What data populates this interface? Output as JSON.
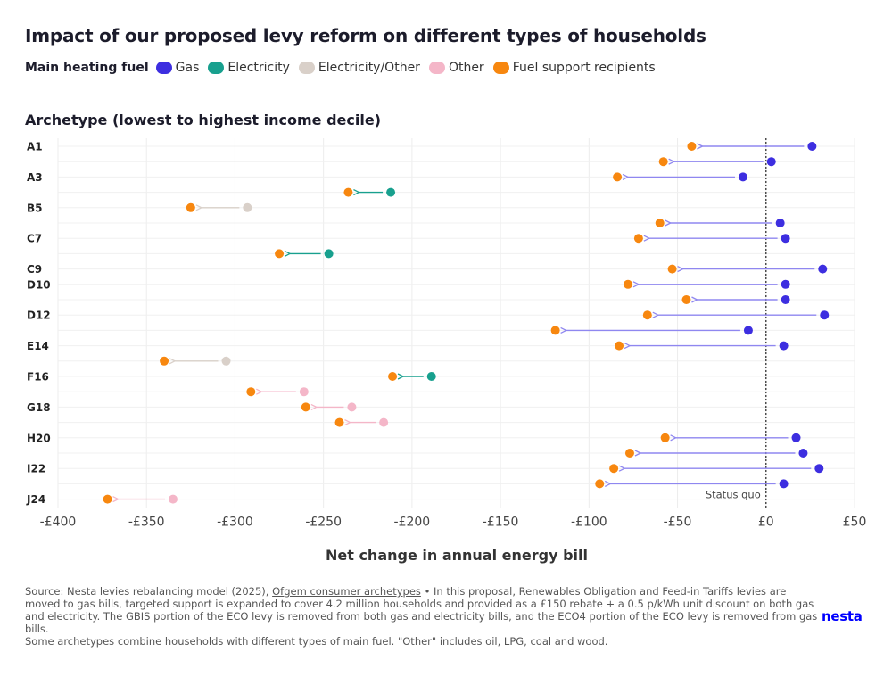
{
  "title": "Impact of our proposed levy reform on different types of households",
  "legend": {
    "title": "Main heating fuel",
    "items": [
      {
        "label": "Gas",
        "color": "#3d2ee0"
      },
      {
        "label": "Electricity",
        "color": "#18a08e"
      },
      {
        "label": "Electricity/Other",
        "color": "#d9d0c9"
      },
      {
        "label": "Other",
        "color": "#f4b6c8"
      },
      {
        "label": "Fuel support recipients",
        "color": "#f7870f"
      }
    ]
  },
  "subtitle": "Archetype (lowest to highest income decile)",
  "footer": {
    "source_prefix": "Source: Nesta levies rebalancing model (2025),",
    "source_link": "Ofgem consumer archetypes",
    "source_text": "• In this proposal, Renewables Obligation and Feed-in Tariffs levies are moved to gas bills, targeted support is expanded to cover 4.2 million households and provided as a £150 rebate + a 0.5 p/kWh unit discount on both gas and electricity. The GBIS portion of the ECO levy is removed from both gas and electricity bills, and the ECO4 portion of the ECO levy is removed from gas bills.",
    "note": "Some archetypes combine households with different types of main fuel. \"Other\" includes oil, LPG, coal and wood."
  },
  "logo": "nesta",
  "chart_data": {
    "type": "dumbbell",
    "xlabel": "Net change in annual energy bill",
    "xlim": [
      -400,
      50
    ],
    "x_ticks": [
      -400,
      -350,
      -300,
      -250,
      -200,
      -150,
      -100,
      -50,
      0,
      50
    ],
    "x_tick_labels": [
      "-£400",
      "-£350",
      "-£300",
      "-£250",
      "-£200",
      "-£150",
      "-£100",
      "-£50",
      "£0",
      "£50"
    ],
    "reference_line": {
      "value": 0,
      "label": "Status quo"
    },
    "colors": {
      "gas": "#3d2ee0",
      "gas_arrow": "#8f87f0",
      "electricity": "#18a08e",
      "electricity_other": "#d9d0c9",
      "other": "#f4b6c8",
      "support": "#f7870f"
    },
    "rows": [
      {
        "label": "A1",
        "fuel": "gas",
        "start": 26,
        "end": -42
      },
      {
        "label": "",
        "fuel": "gas",
        "start": 3,
        "end": -58
      },
      {
        "label": "A3",
        "fuel": "gas",
        "start": -13,
        "end": -84
      },
      {
        "label": "",
        "fuel": "electricity",
        "start": -212,
        "end": -236
      },
      {
        "label": "B5",
        "fuel": "electricity_other",
        "start": -293,
        "end": -325
      },
      {
        "label": "",
        "fuel": "gas",
        "start": 8,
        "end": -60
      },
      {
        "label": "C7",
        "fuel": "gas",
        "start": 11,
        "end": -72
      },
      {
        "label": "",
        "fuel": "electricity",
        "start": -247,
        "end": -275
      },
      {
        "label": "C9",
        "fuel": "gas",
        "start": 32,
        "end": -53
      },
      {
        "label": "D10",
        "fuel": "gas",
        "start": 11,
        "end": -78
      },
      {
        "label": "",
        "fuel": "gas",
        "start": 11,
        "end": -45
      },
      {
        "label": "D12",
        "fuel": "gas",
        "start": 33,
        "end": -67
      },
      {
        "label": "",
        "fuel": "gas",
        "start": -10,
        "end": -119
      },
      {
        "label": "E14",
        "fuel": "gas",
        "start": 10,
        "end": -83
      },
      {
        "label": "",
        "fuel": "electricity_other",
        "start": -305,
        "end": -340
      },
      {
        "label": "F16",
        "fuel": "electricity",
        "start": -189,
        "end": -211
      },
      {
        "label": "",
        "fuel": "other",
        "start": -261,
        "end": -291
      },
      {
        "label": "G18",
        "fuel": "other",
        "start": -234,
        "end": -260
      },
      {
        "label": "",
        "fuel": "other",
        "start": -216,
        "end": -241
      },
      {
        "label": "H20",
        "fuel": "gas",
        "start": 17,
        "end": -57
      },
      {
        "label": "",
        "fuel": "gas",
        "start": 21,
        "end": -77
      },
      {
        "label": "I22",
        "fuel": "gas",
        "start": 30,
        "end": -86
      },
      {
        "label": "",
        "fuel": "gas",
        "start": 10,
        "end": -94
      },
      {
        "label": "J24",
        "fuel": "other",
        "start": -335,
        "end": -372
      }
    ]
  }
}
